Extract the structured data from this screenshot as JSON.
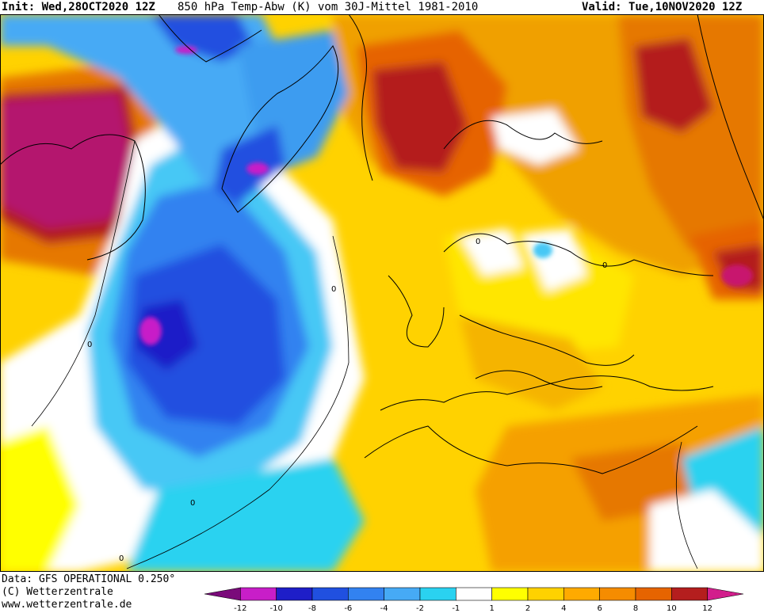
{
  "header": {
    "init": "Init: Wed,28OCT2020 12Z",
    "title": "850 hPa Temp-Abw (K) vom 30J-Mittel 1981-2010",
    "valid": "Valid: Tue,10NOV2020 12Z"
  },
  "footer": {
    "data_line": "Data: GFS OPERATIONAL 0.250°",
    "copyright": "(C) Wetterzentrale",
    "url": "www.wetterzentrale.de"
  },
  "legend": {
    "colors": [
      "#7a0a7a",
      "#c81ec8",
      "#1e1ec8",
      "#2050e0",
      "#3282f0",
      "#46aaf5",
      "#2ad2f0",
      "#ffffff",
      "#ffff00",
      "#ffd200",
      "#ffaa00",
      "#f58c00",
      "#e66400",
      "#b41e1e",
      "#d21e8c"
    ],
    "ticks": [
      "-12",
      "-10",
      "-8",
      "-6",
      "-4",
      "-2",
      "-1",
      "1",
      "2",
      "4",
      "6",
      "8",
      "10",
      "12"
    ]
  }
}
